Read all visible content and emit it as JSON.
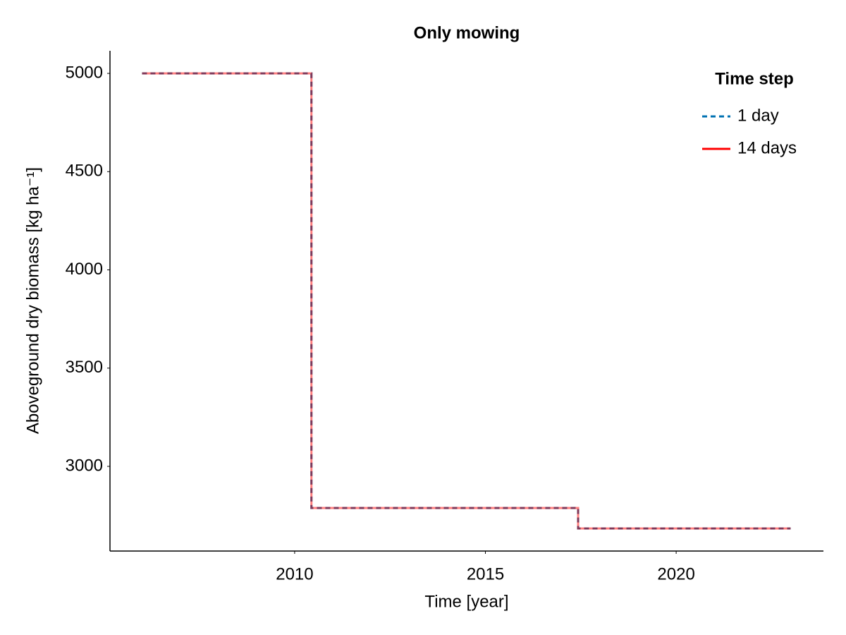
{
  "chart_data": {
    "type": "line",
    "title": "Only mowing",
    "x_label": "Time [year]",
    "y_label": "Aboveground dry biomass [kg ha⁻¹]",
    "x": [
      2006,
      2010.44,
      2010.44,
      2017.43,
      2017.43,
      2023
    ],
    "series": [
      {
        "name": "1 day",
        "color": "#0072b2",
        "dashed": true,
        "values": [
          5000,
          5000,
          2788,
          2788,
          2684,
          2684
        ]
      },
      {
        "name": "14 days",
        "color": "#ff0000",
        "dashed": false,
        "values": [
          5000,
          5000,
          2788,
          2788,
          2684,
          2684
        ]
      }
    ],
    "xlim": [
      2005.16,
      2023.86
    ],
    "xticks": [
      2010,
      2015,
      2020
    ],
    "ylim": [
      2569,
      5115
    ],
    "yticks": [
      3000,
      3500,
      4000,
      4500,
      5000
    ],
    "grid": false,
    "legend_title": "Time step",
    "legend_position": "top-right"
  }
}
